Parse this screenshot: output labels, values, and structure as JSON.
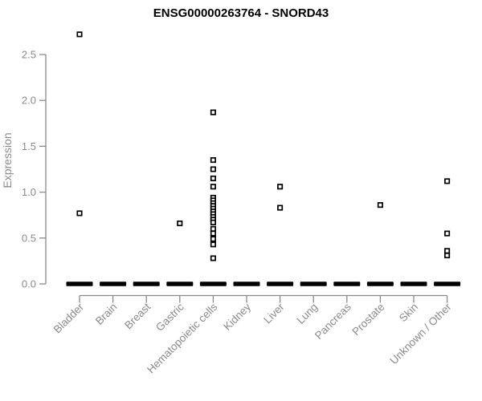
{
  "chart_data": {
    "type": "scatter",
    "subtype": "strip-plot",
    "title": "ENSG00000263764 - SNORD43",
    "ylabel": "Expression",
    "xlabel": "",
    "yticks": [
      0.0,
      0.5,
      1.0,
      1.5,
      2.0,
      2.5
    ],
    "ytick_labels": [
      "0.0",
      "0.5",
      "1.0",
      "1.5",
      "2.0",
      "2.5"
    ],
    "ylim": [
      0,
      2.8
    ],
    "grid": false,
    "legend": false,
    "marker": "open-square",
    "note": "every category has a dense horizontal cluster of overlapping points at expression 0, drawn as a thick black dash",
    "categories": [
      "Bladder",
      "Brain",
      "Breast",
      "Gastric",
      "Hematopoietic cells",
      "Kidney",
      "Liver",
      "Lung",
      "Pancreas",
      "Prostate",
      "Skin",
      "Unknown / Other"
    ],
    "series": [
      {
        "name": "Bladder",
        "zero_cluster": true,
        "values": [
          2.72,
          0.77
        ]
      },
      {
        "name": "Brain",
        "zero_cluster": true,
        "values": []
      },
      {
        "name": "Breast",
        "zero_cluster": true,
        "values": []
      },
      {
        "name": "Gastric",
        "zero_cluster": true,
        "values": [
          0.66
        ]
      },
      {
        "name": "Hematopoietic cells",
        "zero_cluster": true,
        "values": [
          1.87,
          1.35,
          1.25,
          1.15,
          1.06,
          0.94,
          0.91,
          0.88,
          0.85,
          0.82,
          0.79,
          0.76,
          0.73,
          0.7,
          0.67,
          0.6,
          0.55,
          0.49,
          0.43,
          0.28
        ]
      },
      {
        "name": "Kidney",
        "zero_cluster": true,
        "values": []
      },
      {
        "name": "Liver",
        "zero_cluster": true,
        "values": [
          1.06,
          0.83
        ]
      },
      {
        "name": "Lung",
        "zero_cluster": true,
        "values": []
      },
      {
        "name": "Pancreas",
        "zero_cluster": true,
        "values": []
      },
      {
        "name": "Prostate",
        "zero_cluster": true,
        "values": [
          0.86
        ]
      },
      {
        "name": "Skin",
        "zero_cluster": true,
        "values": []
      },
      {
        "name": "Unknown / Other",
        "zero_cluster": true,
        "values": [
          1.12,
          0.55,
          0.36,
          0.31
        ]
      }
    ],
    "colors": {
      "marker_stroke": "#000000",
      "marker_fill": "#ffffff",
      "zero_bar": "#000000",
      "axis": "#8a8a8a",
      "tick_text": "#8a8a8a",
      "title_text": "#000000",
      "background": "#ffffff"
    }
  }
}
